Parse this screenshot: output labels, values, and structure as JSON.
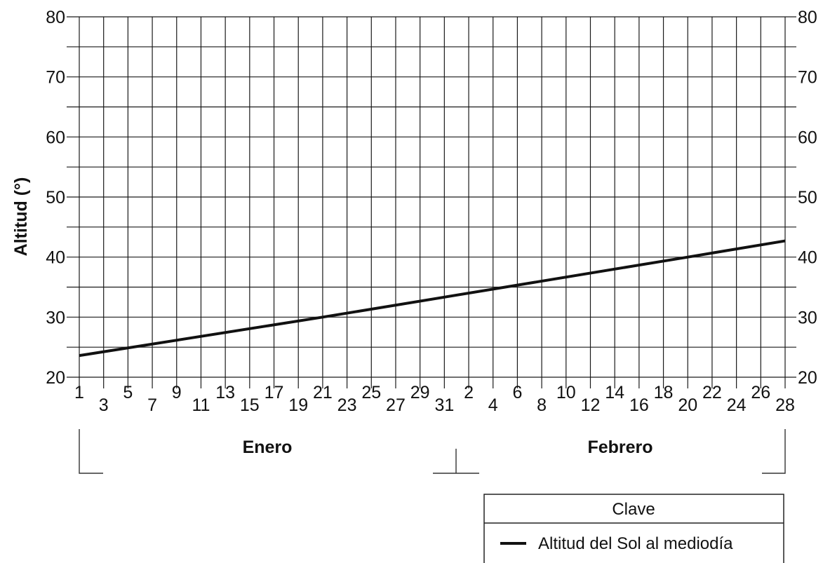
{
  "chart_data": {
    "type": "line",
    "title": "",
    "ylabel": "Altitud (°)",
    "xlabel": "",
    "ylim": [
      20,
      80
    ],
    "yticks": [
      20,
      30,
      40,
      50,
      60,
      70,
      80
    ],
    "grid": true,
    "x_tick_labels": [
      "1",
      "3",
      "5",
      "7",
      "9",
      "11",
      "13",
      "15",
      "17",
      "19",
      "21",
      "23",
      "25",
      "27",
      "29",
      "31",
      "2",
      "4",
      "6",
      "8",
      "10",
      "12",
      "14",
      "16",
      "18",
      "20",
      "22",
      "24",
      "26",
      "28"
    ],
    "months": [
      {
        "label": "Enero",
        "first_day": 1,
        "last_day": 31
      },
      {
        "label": "Febrero",
        "first_day": 1,
        "last_day": 28
      }
    ],
    "series": [
      {
        "name": "Altitud del Sol al mediodía",
        "color": "#111111",
        "points": [
          {
            "x": "Ene 1",
            "y": 23.6
          },
          {
            "x": "Ene 21",
            "y": 30.0
          },
          {
            "x": "Feb 20",
            "y": 40.0
          },
          {
            "x": "Feb 28",
            "y": 42.7
          }
        ]
      }
    ],
    "legend": {
      "title": "Clave",
      "position": "bottom-right"
    }
  }
}
